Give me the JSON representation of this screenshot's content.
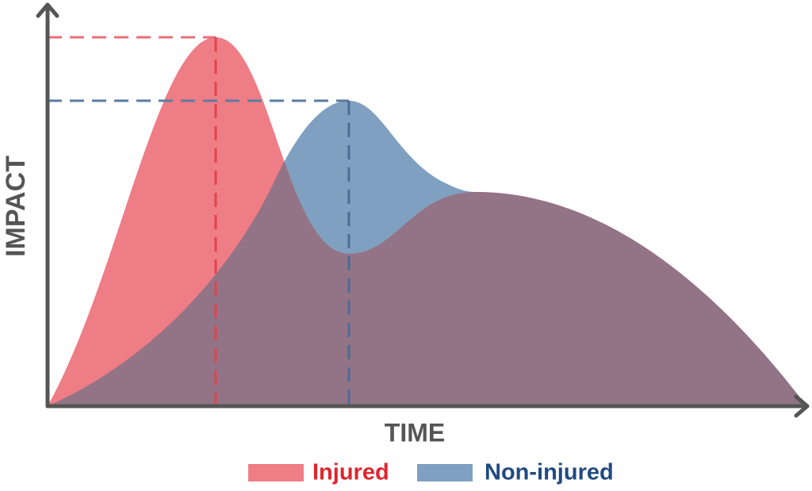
{
  "axes": {
    "y_label": "IMPACT",
    "x_label": "TIME"
  },
  "legend": [
    {
      "label": "Injured"
    },
    {
      "label": "Non-injured"
    }
  ]
}
